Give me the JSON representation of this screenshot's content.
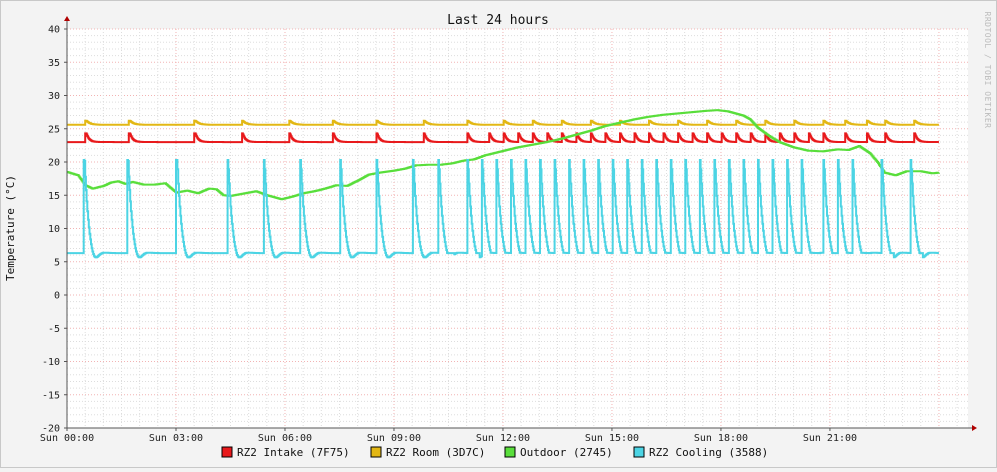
{
  "chart_data": {
    "type": "line",
    "title": "Last 24 hours",
    "xlabel": "",
    "ylabel": "Temperature (°C)",
    "watermark": "RRDTOOL / TOBI OETIKER",
    "xlim": [
      0,
      24.8
    ],
    "ylim": [
      -20,
      40
    ],
    "yticks": [
      40,
      35,
      30,
      25,
      20,
      15,
      10,
      5,
      0,
      -5,
      -10,
      -15,
      -20
    ],
    "xticks": [
      {
        "x": 0,
        "label": "Sun 00:00"
      },
      {
        "x": 3,
        "label": "Sun 03:00"
      },
      {
        "x": 6,
        "label": "Sun 06:00"
      },
      {
        "x": 9,
        "label": "Sun 09:00"
      },
      {
        "x": 12,
        "label": "Sun 12:00"
      },
      {
        "x": 15,
        "label": "Sun 15:00"
      },
      {
        "x": 18,
        "label": "Sun 18:00"
      },
      {
        "x": 21,
        "label": "Sun 21:00"
      }
    ],
    "grid": true,
    "legend_position": "bottom",
    "series": [
      {
        "name": "RZ2 Intake (7F75)",
        "color": "#e8191b",
        "pattern": "cycle",
        "range": [
          0,
          24
        ],
        "base": 23.0,
        "peak": 24.3,
        "cycles": [
          0.5,
          1.7,
          3.5,
          4.8,
          6.1,
          7.3,
          8.5,
          9.8,
          11.0,
          11.6,
          12.0,
          12.4,
          12.8,
          13.2,
          13.6,
          14.0,
          14.4,
          14.8,
          15.2,
          15.6,
          16.0,
          16.4,
          16.8,
          17.2,
          17.6,
          18.0,
          18.4,
          18.8,
          19.2,
          19.6,
          20.0,
          20.4,
          20.8,
          21.4,
          22.0,
          22.5,
          23.3
        ],
        "decay": 0.3,
        "dip": 0
      },
      {
        "name": "RZ2 Room (3D7C)",
        "color": "#e3b714",
        "pattern": "cycle",
        "range": [
          0,
          24
        ],
        "base": 25.6,
        "peak": 26.2,
        "cycles": [
          0.5,
          1.7,
          3.5,
          4.8,
          6.1,
          7.3,
          8.5,
          9.8,
          11.0,
          12.0,
          12.8,
          13.6,
          14.4,
          15.2,
          16.0,
          16.8,
          17.6,
          18.4,
          19.2,
          20.0,
          20.8,
          21.4,
          22.0,
          22.5,
          23.3
        ],
        "decay": 0.4,
        "dip": 0
      },
      {
        "name": "Outdoor (2745)",
        "color": "#59de3b",
        "pattern": "points",
        "points": [
          [
            0.0,
            18.5
          ],
          [
            0.3,
            18.0
          ],
          [
            0.5,
            16.5
          ],
          [
            0.7,
            16.0
          ],
          [
            1.0,
            16.4
          ],
          [
            1.2,
            16.9
          ],
          [
            1.4,
            17.1
          ],
          [
            1.6,
            16.7
          ],
          [
            1.8,
            17.0
          ],
          [
            2.1,
            16.6
          ],
          [
            2.4,
            16.6
          ],
          [
            2.7,
            16.8
          ],
          [
            3.0,
            15.4
          ],
          [
            3.3,
            15.7
          ],
          [
            3.6,
            15.3
          ],
          [
            3.9,
            16.0
          ],
          [
            4.1,
            15.9
          ],
          [
            4.3,
            15.0
          ],
          [
            4.5,
            14.9
          ],
          [
            4.8,
            15.2
          ],
          [
            5.2,
            15.6
          ],
          [
            5.5,
            15.0
          ],
          [
            5.9,
            14.4
          ],
          [
            6.2,
            14.8
          ],
          [
            6.5,
            15.3
          ],
          [
            6.8,
            15.6
          ],
          [
            7.1,
            16.0
          ],
          [
            7.4,
            16.5
          ],
          [
            7.7,
            16.4
          ],
          [
            8.0,
            17.2
          ],
          [
            8.3,
            18.1
          ],
          [
            8.6,
            18.4
          ],
          [
            9.0,
            18.7
          ],
          [
            9.3,
            19.0
          ],
          [
            9.6,
            19.5
          ],
          [
            10.0,
            19.6
          ],
          [
            10.3,
            19.6
          ],
          [
            10.6,
            19.8
          ],
          [
            10.9,
            20.2
          ],
          [
            11.2,
            20.4
          ],
          [
            11.5,
            21.0
          ],
          [
            11.8,
            21.4
          ],
          [
            12.1,
            21.8
          ],
          [
            12.4,
            22.2
          ],
          [
            12.8,
            22.6
          ],
          [
            13.2,
            23.0
          ],
          [
            13.6,
            23.5
          ],
          [
            14.0,
            24.1
          ],
          [
            14.4,
            24.7
          ],
          [
            14.8,
            25.4
          ],
          [
            15.2,
            25.9
          ],
          [
            15.6,
            26.4
          ],
          [
            16.0,
            26.8
          ],
          [
            16.4,
            27.1
          ],
          [
            16.8,
            27.3
          ],
          [
            17.2,
            27.5
          ],
          [
            17.6,
            27.7
          ],
          [
            17.9,
            27.8
          ],
          [
            18.2,
            27.6
          ],
          [
            18.6,
            27.0
          ],
          [
            18.8,
            26.4
          ],
          [
            19.0,
            25.2
          ],
          [
            19.3,
            24.0
          ],
          [
            19.6,
            23.0
          ],
          [
            20.0,
            22.2
          ],
          [
            20.4,
            21.7
          ],
          [
            20.8,
            21.6
          ],
          [
            21.2,
            21.9
          ],
          [
            21.5,
            21.8
          ],
          [
            21.8,
            22.4
          ],
          [
            22.1,
            21.3
          ],
          [
            22.3,
            20.0
          ],
          [
            22.5,
            18.4
          ],
          [
            22.8,
            18.0
          ],
          [
            23.1,
            18.6
          ],
          [
            23.5,
            18.6
          ],
          [
            23.8,
            18.3
          ],
          [
            24.0,
            18.4
          ]
        ]
      },
      {
        "name": "RZ2 Cooling (3588)",
        "color": "#4cd4e4",
        "pattern": "cycle",
        "range": [
          0,
          24
        ],
        "base": 6.3,
        "peak": 20.3,
        "cycles": [
          0.45,
          1.65,
          3.0,
          4.4,
          5.4,
          6.4,
          7.5,
          8.5,
          9.5,
          10.2,
          11.0,
          11.4,
          11.8,
          12.2,
          12.6,
          13.0,
          13.4,
          13.8,
          14.2,
          14.6,
          15.0,
          15.4,
          15.8,
          16.2,
          16.6,
          17.0,
          17.4,
          17.8,
          18.2,
          18.6,
          19.0,
          19.4,
          19.8,
          20.2,
          20.8,
          21.2,
          21.6,
          22.4,
          23.2
        ],
        "decay": 0.45,
        "dip": 1.8
      }
    ]
  }
}
